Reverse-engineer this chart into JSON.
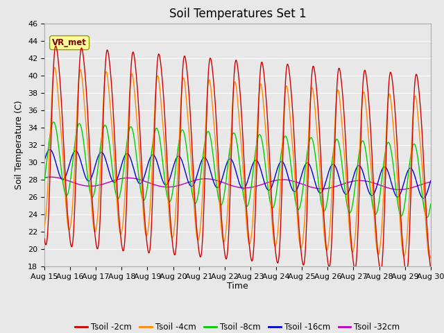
{
  "title": "Soil Temperatures Set 1",
  "xlabel": "Time",
  "ylabel": "Soil Temperature (C)",
  "ylim": [
    18,
    46
  ],
  "yticks": [
    18,
    20,
    22,
    24,
    26,
    28,
    30,
    32,
    34,
    36,
    38,
    40,
    42,
    44,
    46
  ],
  "xtick_labels": [
    "Aug 15",
    "Aug 16",
    "Aug 17",
    "Aug 18",
    "Aug 19",
    "Aug 20",
    "Aug 21",
    "Aug 22",
    "Aug 23",
    "Aug 24",
    "Aug 25",
    "Aug 26",
    "Aug 27",
    "Aug 28",
    "Aug 29",
    "Aug 30"
  ],
  "annotation_text": "VR_met",
  "colors": {
    "Tsoil -2cm": "#cc0000",
    "Tsoil -4cm": "#ff8800",
    "Tsoil -8cm": "#00cc00",
    "Tsoil -16cm": "#0000cc",
    "Tsoil -32cm": "#bb00bb"
  },
  "bg_color": "#e8e8e8",
  "grid_color": "#ffffff",
  "title_fontsize": 12,
  "axis_label_fontsize": 9,
  "tick_fontsize": 8
}
